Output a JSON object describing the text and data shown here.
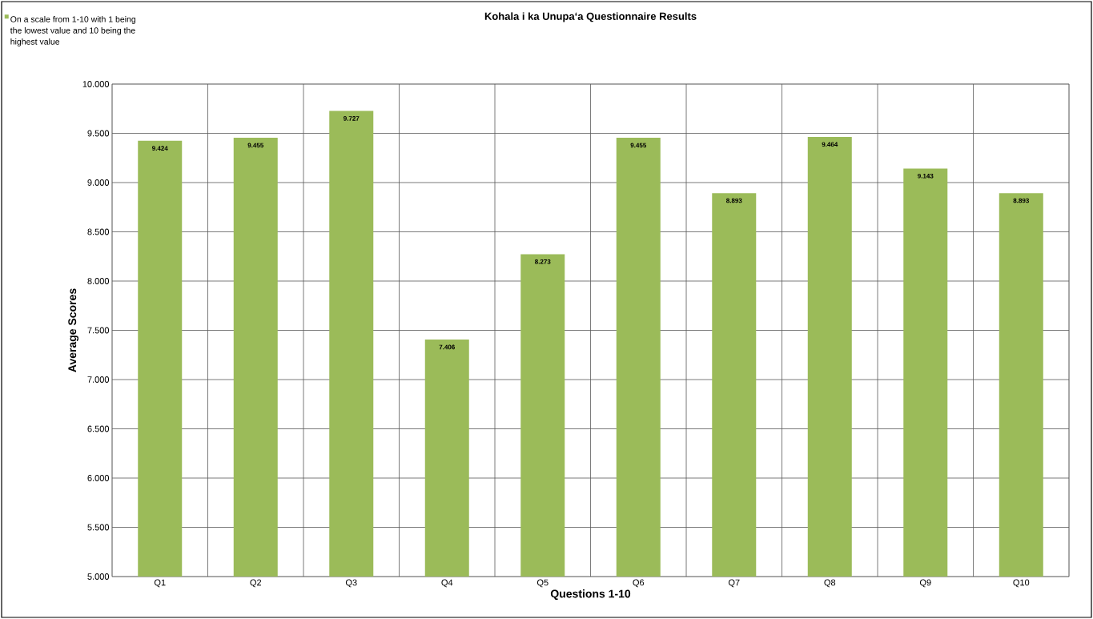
{
  "chart_data": {
    "type": "bar",
    "title": "Kohala i ka Unupaʻa Questionnaire  Results",
    "xlabel": "Questions 1-10",
    "ylabel": "Average Scores",
    "categories": [
      "Q1",
      "Q2",
      "Q3",
      "Q4",
      "Q5",
      "Q6",
      "Q7",
      "Q8",
      "Q9",
      "Q10"
    ],
    "series": [
      {
        "name": "On a scale from 1-10 with 1 being the lowest value and 10 being the highest value",
        "color": "#9bbb59",
        "values": [
          9.424,
          9.455,
          9.727,
          7.406,
          8.273,
          9.455,
          8.893,
          9.464,
          9.143,
          8.893
        ]
      }
    ],
    "ylim": [
      5,
      10
    ],
    "yticks": [
      {
        "value": 5,
        "label": "5.000"
      },
      {
        "value": 5.5,
        "label": "5.500"
      },
      {
        "value": 6,
        "label": "6.000"
      },
      {
        "value": 6.5,
        "label": "6.500"
      },
      {
        "value": 7,
        "label": "7.000"
      },
      {
        "value": 7.5,
        "label": "7.500"
      },
      {
        "value": 8,
        "label": "8.000"
      },
      {
        "value": 8.5,
        "label": "8.500"
      },
      {
        "value": 9,
        "label": "9.000"
      },
      {
        "value": 9.5,
        "label": "9.500"
      },
      {
        "value": 10,
        "label": "10.000"
      }
    ],
    "grid": true,
    "legend": "top left",
    "data_labels": true
  }
}
